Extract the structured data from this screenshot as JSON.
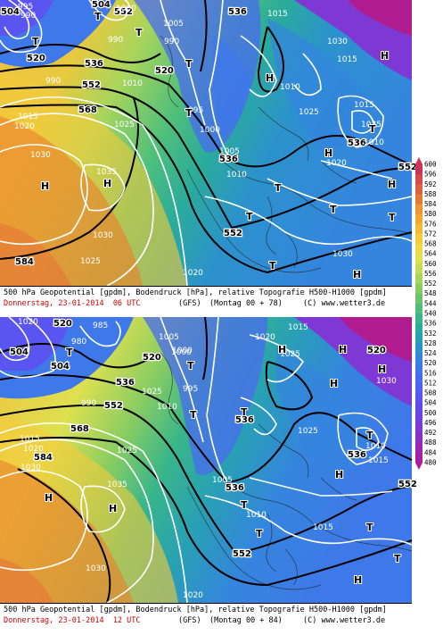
{
  "panels": [
    {
      "caption_line1": "500 hPa Geopotential [gpdm], Bodendruck [hPa], relative Topografie H500-H1000 [gpdm]",
      "caption_date": "Donnerstag, 23-01-2014  06 UTC",
      "caption_model": "(GFS)",
      "caption_run": "(Montag 00 + 78)",
      "caption_copyright": "(C) www.wetter3.de",
      "labels": {
        "geo": [
          "504",
          "520",
          "536",
          "552",
          "568",
          "584",
          "536",
          "552",
          "520",
          "536",
          "552",
          "536",
          "504",
          "552"
        ],
        "pressure": [
          "995",
          "990",
          "990",
          "1005",
          "1000",
          "990",
          "1015",
          "1030",
          "1015",
          "1010",
          "995",
          "1025",
          "1000",
          "1020",
          "1030",
          "1035",
          "1010",
          "1005",
          "1010",
          "1025",
          "1030",
          "1025",
          "1020",
          "1010",
          "1015",
          "1020",
          "1030",
          "1035",
          "1015",
          "990"
        ],
        "highs": [
          "H",
          "H",
          "H",
          "H",
          "H",
          "H",
          "H"
        ],
        "lows": [
          "T",
          "T",
          "T",
          "T",
          "T",
          "T",
          "T",
          "T",
          "T",
          "T",
          "T"
        ]
      }
    },
    {
      "caption_line1": "500 hPa Geopotential [gpdm], Bodendruck [hPa], relative Topografie H500-H1000 [gpdm]",
      "caption_date": "Donnerstag, 23-01-2014  12 UTC",
      "caption_model": "(GFS)",
      "caption_run": "(Montag 00 + 84)",
      "caption_copyright": "(C) www.wetter3.de",
      "labels": {
        "geo": [
          "504",
          "520",
          "536",
          "552",
          "568",
          "584",
          "520",
          "536",
          "552",
          "536",
          "552",
          "520",
          "536",
          "504"
        ],
        "pressure": [
          "1020",
          "980",
          "985",
          "990",
          "1005",
          "1000",
          "995",
          "1020",
          "1015",
          "1025",
          "1015",
          "1010",
          "1025",
          "1030",
          "1020",
          "1035",
          "1025",
          "1030",
          "1025",
          "1030",
          "1020",
          "1015",
          "1010",
          "1015",
          "1005",
          "1010",
          "1000"
        ],
        "highs": [
          "H",
          "H",
          "H",
          "H",
          "H",
          "H",
          "H",
          "H"
        ],
        "lows": [
          "T",
          "T",
          "T",
          "T",
          "T",
          "T",
          "T",
          "T",
          "T"
        ]
      }
    }
  ],
  "colorbar": {
    "ticks": [
      "600",
      "596",
      "592",
      "588",
      "584",
      "580",
      "576",
      "572",
      "568",
      "564",
      "560",
      "556",
      "552",
      "548",
      "544",
      "540",
      "536",
      "532",
      "528",
      "524",
      "520",
      "516",
      "512",
      "508",
      "504",
      "500",
      "496",
      "492",
      "488",
      "484",
      "480"
    ],
    "colors": [
      "#cc3355",
      "#d54a4a",
      "#dd6040",
      "#e57a38",
      "#ec9430",
      "#f0a830",
      "#f3bb35",
      "#f5cc3c",
      "#efd945",
      "#dfe050",
      "#c6dc55",
      "#a8d55c",
      "#88cc62",
      "#6ac56c",
      "#4fbf7a",
      "#38b68a",
      "#2aab9c",
      "#28a0b4",
      "#2c92cc",
      "#3585de",
      "#3f78e8",
      "#4a6bef",
      "#5060f2",
      "#5a55f0",
      "#6448ea",
      "#7040e0",
      "#7e38d3",
      "#8c30c4",
      "#9a28b3",
      "#a521a2",
      "#b01b90"
    ]
  }
}
